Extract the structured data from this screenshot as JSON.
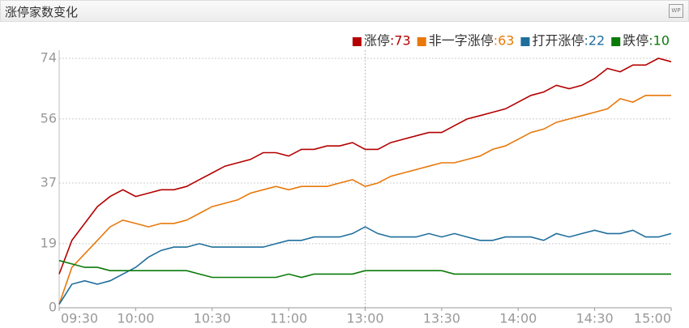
{
  "header": {
    "title": "涨停家数变化",
    "icon": "WP"
  },
  "chart_data": {
    "type": "line",
    "categories": [
      "09:30",
      null,
      null,
      null,
      null,
      null,
      "10:00",
      null,
      null,
      null,
      null,
      null,
      "10:30",
      null,
      null,
      null,
      null,
      null,
      "11:00",
      null,
      null,
      null,
      null,
      null,
      "13:00",
      null,
      null,
      null,
      null,
      null,
      "13:30",
      null,
      null,
      null,
      null,
      null,
      "14:00",
      null,
      null,
      null,
      null,
      null,
      "14:30",
      null,
      null,
      null,
      null,
      null,
      "15:00"
    ],
    "series": [
      {
        "name": "涨停",
        "end_label": ":73",
        "color": "#b40000",
        "values": [
          10,
          20,
          25,
          30,
          33,
          35,
          33,
          34,
          35,
          35,
          36,
          38,
          40,
          42,
          43,
          44,
          46,
          46,
          45,
          47,
          47,
          48,
          48,
          49,
          47,
          47,
          49,
          50,
          51,
          52,
          52,
          54,
          56,
          57,
          58,
          59,
          61,
          63,
          64,
          66,
          65,
          66,
          68,
          71,
          70,
          72,
          72,
          74,
          73
        ]
      },
      {
        "name": "非一字涨停",
        "end_label": ":63",
        "color": "#e8780a",
        "values": [
          1,
          12,
          16,
          20,
          24,
          26,
          25,
          24,
          25,
          25,
          26,
          28,
          30,
          31,
          32,
          34,
          35,
          36,
          35,
          36,
          36,
          36,
          37,
          38,
          36,
          37,
          39,
          40,
          41,
          42,
          43,
          43,
          44,
          45,
          47,
          48,
          50,
          52,
          53,
          55,
          56,
          57,
          58,
          59,
          62,
          61,
          63,
          63,
          63
        ]
      },
      {
        "name": "打开涨停",
        "end_label": ":22",
        "color": "#1f6e9c",
        "values": [
          1,
          7,
          8,
          7,
          8,
          10,
          12,
          15,
          17,
          18,
          18,
          19,
          18,
          18,
          18,
          18,
          18,
          19,
          20,
          20,
          21,
          21,
          21,
          22,
          24,
          22,
          21,
          21,
          21,
          22,
          21,
          22,
          21,
          20,
          20,
          21,
          21,
          21,
          20,
          22,
          21,
          22,
          23,
          22,
          22,
          23,
          21,
          21,
          22
        ]
      },
      {
        "name": "跌停",
        "end_label": ":10",
        "color": "#0a7a0a",
        "values": [
          14,
          13,
          12,
          12,
          11,
          11,
          11,
          11,
          11,
          11,
          11,
          10,
          9,
          9,
          9,
          9,
          9,
          9,
          10,
          9,
          10,
          10,
          10,
          10,
          11,
          11,
          11,
          11,
          11,
          11,
          11,
          10,
          10,
          10,
          10,
          10,
          10,
          10,
          10,
          10,
          10,
          10,
          10,
          10,
          10,
          10,
          10,
          10,
          10
        ]
      }
    ],
    "ylim": [
      0,
      74
    ],
    "yticks": [
      0,
      19,
      37,
      56,
      74
    ],
    "grid": true
  }
}
